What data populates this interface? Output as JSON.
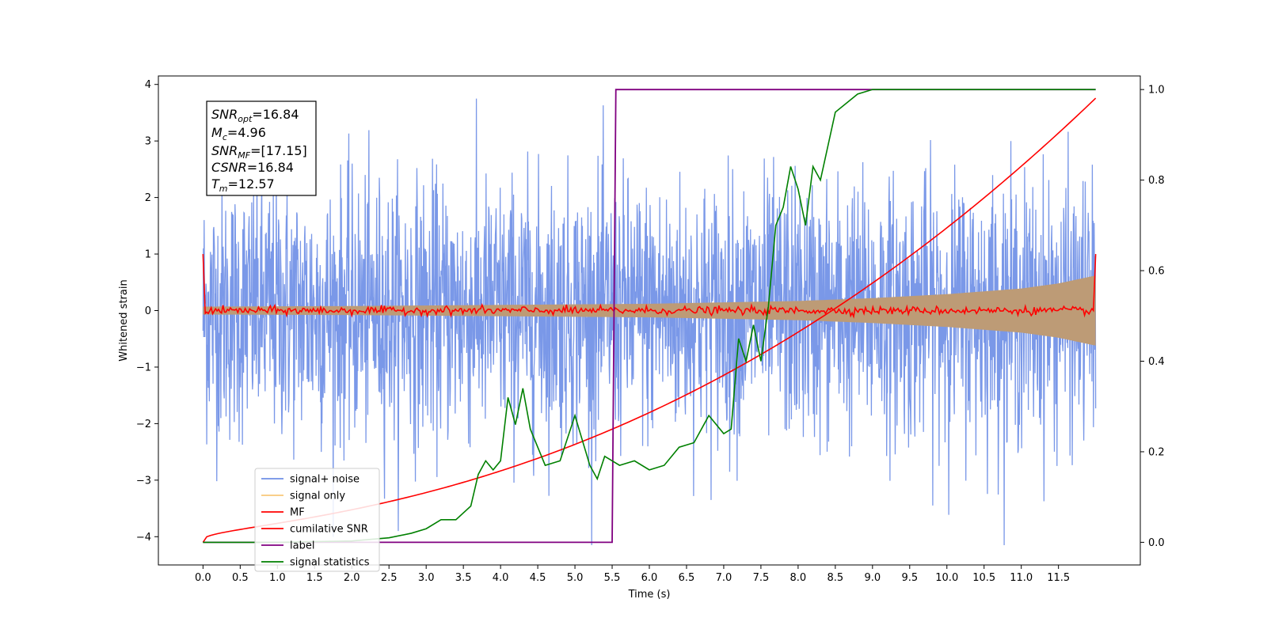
{
  "chart_data": {
    "type": "line",
    "xlabel": "Time (s)",
    "ylabel": "Whitened strain",
    "xlim": [
      -0.6,
      12.6
    ],
    "ylim_left": [
      -4.5,
      4.15
    ],
    "ylim_right": [
      -0.05,
      1.03
    ],
    "x_ticks": [
      0.0,
      0.5,
      1.0,
      1.5,
      2.0,
      2.5,
      3.0,
      3.5,
      4.0,
      4.5,
      5.0,
      5.5,
      6.0,
      6.5,
      7.0,
      7.5,
      8.0,
      8.5,
      9.0,
      9.5,
      10.0,
      10.5,
      11.0,
      11.5
    ],
    "x_tick_labels": [
      "0.0",
      "0.5",
      "1.0",
      "1.5",
      "2.0",
      "2.5",
      "3.0",
      "3.5",
      "4.0",
      "4.5",
      "5.0",
      "5.5",
      "6.0",
      "6.5",
      "7.0",
      "7.5",
      "8.0",
      "8.5",
      "9.0",
      "9.5",
      "10.0",
      "10.5",
      "11.0",
      "11.5"
    ],
    "y_left_ticks": [
      4,
      3,
      2,
      1,
      0,
      -1,
      -2,
      -3,
      -4
    ],
    "y_left_tick_labels": [
      "4",
      "3",
      "2",
      "1",
      "0",
      "−1",
      "−2",
      "−3",
      "−4"
    ],
    "y_right_ticks": [
      1.0,
      0.8,
      0.6,
      0.4,
      0.2,
      0.0
    ],
    "y_right_tick_labels": [
      "1.0",
      "0.8",
      "0.6",
      "0.4",
      "0.2",
      "0.0"
    ],
    "grid": false,
    "legend_position": "lower-left",
    "series": [
      {
        "name": "signal+ noise",
        "axis": "left",
        "color": "#6f8fe6",
        "opacity": 0.92,
        "description_range": [
          -4.2,
          3.75
        ],
        "x_range": [
          0.0,
          12.0
        ]
      },
      {
        "name": "signal only",
        "axis": "left",
        "color": "#f5b041",
        "fill_color": "#bd9b76",
        "envelope": {
          "x": [
            0.0,
            2.0,
            4.0,
            6.0,
            8.0,
            9.0,
            10.0,
            11.0,
            11.5,
            12.0
          ],
          "amplitude": [
            0.07,
            0.08,
            0.1,
            0.12,
            0.17,
            0.22,
            0.29,
            0.39,
            0.48,
            0.62
          ]
        }
      },
      {
        "name": "MF",
        "axis": "left",
        "color": "#ff0000",
        "points": [
          [
            0.0,
            1.0
          ],
          [
            0.03,
            -0.05
          ],
          [
            6.0,
            0.0
          ],
          [
            11.97,
            0.0
          ],
          [
            12.0,
            1.0
          ]
        ]
      },
      {
        "name": "cumilative SNR",
        "axis": "right",
        "color": "#ff0000",
        "points": [
          [
            0.0,
            0.0
          ],
          [
            0.5,
            0.04
          ],
          [
            1.0,
            0.06
          ],
          [
            2.0,
            0.09
          ],
          [
            3.0,
            0.14
          ],
          [
            4.0,
            0.2
          ],
          [
            5.0,
            0.26
          ],
          [
            6.0,
            0.31
          ],
          [
            7.0,
            0.38
          ],
          [
            8.0,
            0.44
          ],
          [
            9.0,
            0.53
          ],
          [
            10.0,
            0.63
          ],
          [
            11.0,
            0.76
          ],
          [
            11.5,
            0.86
          ],
          [
            12.0,
            1.0
          ]
        ]
      },
      {
        "name": "label",
        "axis": "right",
        "color": "#800080",
        "points": [
          [
            0.0,
            0.0
          ],
          [
            5.5,
            0.0
          ],
          [
            5.55,
            1.0
          ],
          [
            12.0,
            1.0
          ]
        ]
      },
      {
        "name": "signal statistics",
        "axis": "right",
        "color": "#008000",
        "points": [
          [
            0.0,
            0.0
          ],
          [
            1.0,
            0.0
          ],
          [
            2.0,
            0.003
          ],
          [
            2.5,
            0.01
          ],
          [
            2.8,
            0.02
          ],
          [
            3.0,
            0.03
          ],
          [
            3.2,
            0.05
          ],
          [
            3.4,
            0.05
          ],
          [
            3.6,
            0.08
          ],
          [
            3.7,
            0.15
          ],
          [
            3.8,
            0.18
          ],
          [
            3.9,
            0.16
          ],
          [
            4.0,
            0.18
          ],
          [
            4.1,
            0.32
          ],
          [
            4.2,
            0.26
          ],
          [
            4.3,
            0.34
          ],
          [
            4.4,
            0.25
          ],
          [
            4.6,
            0.17
          ],
          [
            4.8,
            0.18
          ],
          [
            5.0,
            0.28
          ],
          [
            5.2,
            0.17
          ],
          [
            5.3,
            0.14
          ],
          [
            5.4,
            0.19
          ],
          [
            5.6,
            0.17
          ],
          [
            5.8,
            0.18
          ],
          [
            6.0,
            0.16
          ],
          [
            6.2,
            0.17
          ],
          [
            6.4,
            0.21
          ],
          [
            6.6,
            0.22
          ],
          [
            6.8,
            0.28
          ],
          [
            7.0,
            0.24
          ],
          [
            7.1,
            0.25
          ],
          [
            7.2,
            0.45
          ],
          [
            7.3,
            0.4
          ],
          [
            7.4,
            0.48
          ],
          [
            7.5,
            0.4
          ],
          [
            7.6,
            0.52
          ],
          [
            7.7,
            0.7
          ],
          [
            7.8,
            0.74
          ],
          [
            7.9,
            0.83
          ],
          [
            8.0,
            0.78
          ],
          [
            8.1,
            0.7
          ],
          [
            8.2,
            0.83
          ],
          [
            8.3,
            0.8
          ],
          [
            8.5,
            0.95
          ],
          [
            8.8,
            0.99
          ],
          [
            9.0,
            1.0
          ],
          [
            9.5,
            1.0
          ],
          [
            10.0,
            1.0
          ],
          [
            11.0,
            1.0
          ],
          [
            12.0,
            1.0
          ]
        ]
      }
    ]
  },
  "stats_box": {
    "snr_opt_label": "SNR",
    "snr_opt_sub": "opt",
    "snr_opt_value": "=16.84",
    "mc_label": "M",
    "mc_sub": "c",
    "mc_value": "=4.96",
    "snr_mf_label": "SNR",
    "snr_mf_sub": "MF",
    "snr_mf_value": "=[17.15]",
    "csnr_label": "CSNR",
    "csnr_value": "=16.84",
    "tm_label": "T",
    "tm_sub": "m",
    "tm_value": "=12.57"
  }
}
